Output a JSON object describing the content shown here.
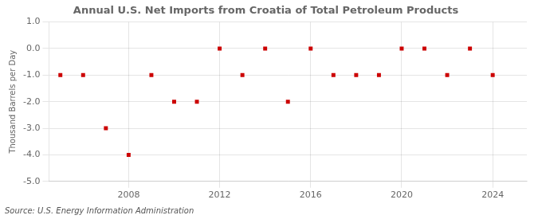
{
  "chart_data": {
    "type": "scatter",
    "title": "Annual U.S. Net Imports from Croatia of Total Petroleum Products",
    "ylabel": "Thousand Barrels per Day",
    "annotations": [
      "Source: U.S. Energy Information Administration"
    ],
    "x": [
      2005,
      2006,
      2007,
      2008,
      2009,
      2010,
      2011,
      2012,
      2013,
      2014,
      2015,
      2016,
      2017,
      2018,
      2019,
      2020,
      2021,
      2022,
      2023,
      2024
    ],
    "values": [
      -1,
      -1,
      -3,
      -4,
      -1,
      -2,
      -2,
      0,
      -1,
      0,
      -2,
      0,
      -1,
      -1,
      -1,
      0,
      0,
      -1,
      0,
      -1
    ],
    "color": "#cc0000",
    "marker": "square",
    "xlim": [
      2004.5,
      2025.5
    ],
    "xticks": [
      2008,
      2012,
      2016,
      2020,
      2024
    ],
    "ylim": [
      -5.0,
      1.0
    ],
    "yticks": [
      {
        "value": -5,
        "label": "-5.0"
      },
      {
        "value": -4,
        "label": "-4.0"
      },
      {
        "value": -3,
        "label": "-3.0"
      },
      {
        "value": -2,
        "label": "-2.0"
      },
      {
        "value": -1,
        "label": "-1.0"
      },
      {
        "value": 0,
        "label": "0.0"
      },
      {
        "value": 1,
        "label": "1.0"
      }
    ],
    "grid": true
  }
}
